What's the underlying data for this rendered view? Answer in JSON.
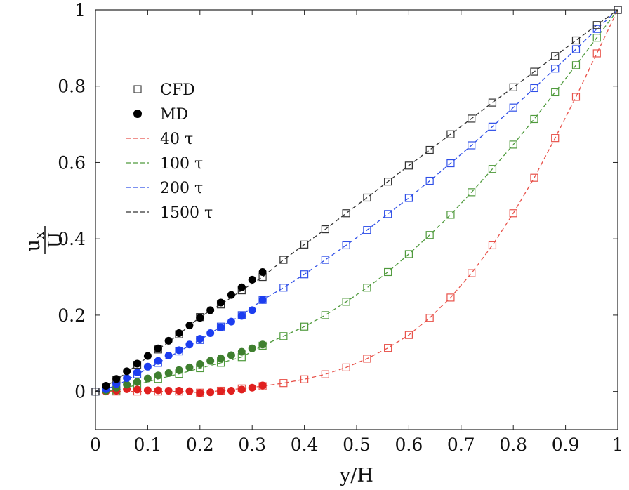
{
  "chart_data": {
    "type": "line",
    "xlabel": "y/H",
    "ylabel_numerator": "u",
    "ylabel_numerator_sub": "x",
    "ylabel_denominator": "U",
    "xlim": [
      0,
      1
    ],
    "ylim": [
      -0.1,
      1
    ],
    "grid": false,
    "legend_placement": "upper-left",
    "xticks": [
      0,
      0.1,
      0.2,
      0.3,
      0.4,
      0.5,
      0.6,
      0.7,
      0.8,
      0.9,
      1
    ],
    "xtick_labels": [
      "0",
      "0.1",
      "0.2",
      "0.3",
      "0.4",
      "0.5",
      "0.6",
      "0.7",
      "0.8",
      "0.9",
      "1"
    ],
    "yticks": [
      0,
      0.2,
      0.4,
      0.6,
      0.8,
      1
    ],
    "ytick_labels": [
      "0",
      "0.2",
      "0.4",
      "0.6",
      "0.8",
      "1"
    ],
    "legend": [
      {
        "label": "CFD",
        "marker": "square-open",
        "color": "#444444"
      },
      {
        "label": "MD",
        "marker": "circle-filled",
        "color": "#000000"
      },
      {
        "label": "40 τ",
        "line": "dashed",
        "color": "#e8524a"
      },
      {
        "label": "100 τ",
        "line": "dashed",
        "color": "#4f9a3c"
      },
      {
        "label": "200 τ",
        "line": "dashed",
        "color": "#2f4fe8"
      },
      {
        "label": "1500 τ",
        "line": "dashed",
        "color": "#333333"
      }
    ],
    "cfd_x": [
      0,
      0.04,
      0.08,
      0.12,
      0.16,
      0.2,
      0.24,
      0.28,
      0.32,
      0.36,
      0.4,
      0.44,
      0.48,
      0.52,
      0.56,
      0.6,
      0.64,
      0.68,
      0.72,
      0.76,
      0.8,
      0.84,
      0.88,
      0.92,
      0.96,
      1.0
    ],
    "series": [
      {
        "name": "40 τ",
        "color": "#e8524a",
        "cfd_y": [
          0,
          0,
          0,
          0,
          0,
          -0.003,
          0.002,
          0.008,
          0.014,
          0.022,
          0.032,
          0.045,
          0.063,
          0.086,
          0.114,
          0.148,
          0.193,
          0.246,
          0.31,
          0.383,
          0.467,
          0.56,
          0.664,
          0.772,
          0.886,
          1.0
        ],
        "md_x": [
          0.02,
          0.04,
          0.06,
          0.08,
          0.1,
          0.12,
          0.14,
          0.16,
          0.18,
          0.2,
          0.22,
          0.24,
          0.26,
          0.28,
          0.3,
          0.32
        ],
        "md_y": [
          0,
          0.002,
          0.006,
          0.005,
          0.003,
          0.003,
          0.002,
          0.002,
          0.001,
          -0.004,
          -0.002,
          0.001,
          0.002,
          0.005,
          0.01,
          0.016
        ]
      },
      {
        "name": "100 τ",
        "color": "#4f9a3c",
        "cfd_y": [
          0,
          0.003,
          0.018,
          0.033,
          0.046,
          0.061,
          0.075,
          0.09,
          0.12,
          0.145,
          0.17,
          0.2,
          0.235,
          0.272,
          0.313,
          0.36,
          0.41,
          0.463,
          0.522,
          0.583,
          0.647,
          0.714,
          0.784,
          0.855,
          0.927,
          1.0
        ],
        "md_x": [
          0.02,
          0.04,
          0.06,
          0.08,
          0.1,
          0.12,
          0.14,
          0.16,
          0.18,
          0.2,
          0.22,
          0.24,
          0.26,
          0.28,
          0.3,
          0.32
        ],
        "md_y": [
          0.002,
          0.01,
          0.018,
          0.025,
          0.034,
          0.042,
          0.048,
          0.056,
          0.063,
          0.072,
          0.08,
          0.087,
          0.095,
          0.104,
          0.113,
          0.123
        ]
      },
      {
        "name": "200 τ",
        "color": "#2f4fe8",
        "cfd_y": [
          0,
          0.015,
          0.045,
          0.075,
          0.105,
          0.135,
          0.17,
          0.2,
          0.24,
          0.272,
          0.307,
          0.345,
          0.383,
          0.423,
          0.465,
          0.507,
          0.552,
          0.598,
          0.645,
          0.694,
          0.744,
          0.795,
          0.846,
          0.897,
          0.95,
          1.0
        ],
        "md_x": [
          0.02,
          0.04,
          0.06,
          0.08,
          0.1,
          0.12,
          0.14,
          0.16,
          0.18,
          0.2,
          0.22,
          0.24,
          0.26,
          0.28,
          0.3,
          0.32
        ],
        "md_y": [
          0.006,
          0.02,
          0.035,
          0.05,
          0.065,
          0.08,
          0.094,
          0.108,
          0.123,
          0.138,
          0.153,
          0.168,
          0.183,
          0.198,
          0.213,
          0.24
        ]
      },
      {
        "name": "1500 τ",
        "color": "#333333",
        "cfd_y": [
          0,
          0.03,
          0.07,
          0.11,
          0.15,
          0.195,
          0.228,
          0.265,
          0.3,
          0.345,
          0.385,
          0.425,
          0.467,
          0.508,
          0.55,
          0.592,
          0.633,
          0.674,
          0.715,
          0.757,
          0.797,
          0.838,
          0.879,
          0.92,
          0.96,
          1.0
        ],
        "md_x": [
          0.02,
          0.04,
          0.06,
          0.08,
          0.1,
          0.12,
          0.14,
          0.16,
          0.18,
          0.2,
          0.22,
          0.24,
          0.26,
          0.28,
          0.3,
          0.32
        ],
        "md_y": [
          0.015,
          0.033,
          0.053,
          0.073,
          0.093,
          0.113,
          0.133,
          0.153,
          0.173,
          0.193,
          0.213,
          0.233,
          0.253,
          0.273,
          0.293,
          0.313
        ]
      }
    ]
  }
}
